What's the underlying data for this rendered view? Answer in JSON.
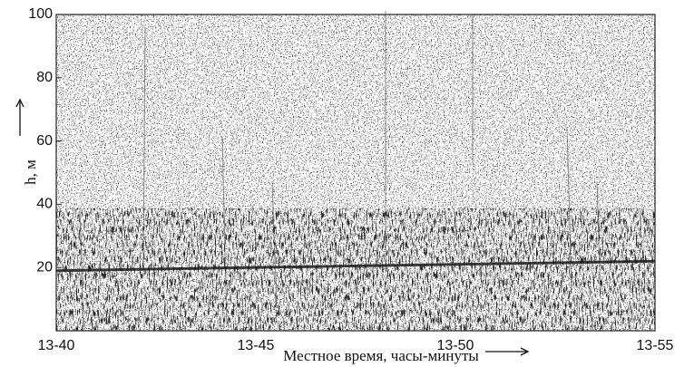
{
  "chart_data": {
    "type": "line",
    "x": [
      820,
      835
    ],
    "series": [
      {
        "color": "#1a1a1a",
        "values": [
          19,
          22
        ]
      }
    ],
    "xlim": [
      820,
      835
    ],
    "xticks": [
      {
        "value": 820,
        "label": "13-40"
      },
      {
        "value": 825,
        "label": "13-45"
      },
      {
        "value": 830,
        "label": "13-50"
      },
      {
        "value": 835,
        "label": "13-55"
      }
    ],
    "ylim": [
      0,
      100
    ],
    "yticks": [
      20,
      40,
      60,
      80,
      100
    ],
    "x_label": "Местное время, часы-минуты",
    "y_label": "h,  м"
  }
}
